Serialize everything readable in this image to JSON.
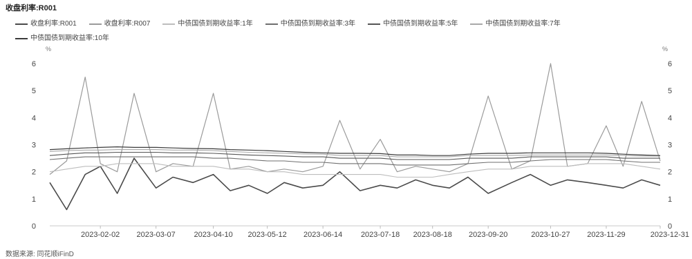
{
  "title": "收盘利率:R001",
  "unit_left": "%",
  "unit_right": "%",
  "source": "数据来源: 同花顺iFinD",
  "chart_data": {
    "type": "line",
    "title": "收盘利率:R001",
    "ylim": [
      0,
      6
    ],
    "yticks": [
      0,
      1,
      2,
      3,
      4,
      5,
      6
    ],
    "ylabel_left": "%",
    "ylabel_right": "%",
    "grid": false,
    "legend_position": "top-left",
    "x_tick_labels": [
      "2023-02-02",
      "2023-03-07",
      "2023-04-10",
      "2023-05-12",
      "2023-06-14",
      "2023-07-18",
      "2023-08-18",
      "2023-09-20",
      "2023-10-27",
      "2023-11-29",
      "2023-12-31"
    ],
    "x": [
      "2023-01-03",
      "2023-01-13",
      "2023-01-24",
      "2023-02-02",
      "2023-02-12",
      "2023-02-22",
      "2023-03-07",
      "2023-03-17",
      "2023-03-29",
      "2023-04-10",
      "2023-04-20",
      "2023-05-01",
      "2023-05-12",
      "2023-05-22",
      "2023-06-02",
      "2023-06-14",
      "2023-06-24",
      "2023-07-06",
      "2023-07-18",
      "2023-07-28",
      "2023-08-08",
      "2023-08-18",
      "2023-08-28",
      "2023-09-08",
      "2023-09-20",
      "2023-10-04",
      "2023-10-15",
      "2023-10-27",
      "2023-11-06",
      "2023-11-18",
      "2023-11-29",
      "2023-12-09",
      "2023-12-20",
      "2023-12-31"
    ],
    "series": [
      {
        "name": "收盘利率:R001",
        "color": "#4a4a4a",
        "width": 1.6,
        "values": [
          1.6,
          0.6,
          1.9,
          2.2,
          1.2,
          2.5,
          1.4,
          1.8,
          1.6,
          1.9,
          1.3,
          1.5,
          1.2,
          1.6,
          1.4,
          1.5,
          2.0,
          1.3,
          1.5,
          1.4,
          1.7,
          1.5,
          1.4,
          1.8,
          1.2,
          1.6,
          1.9,
          1.5,
          1.7,
          1.6,
          1.5,
          1.4,
          1.7,
          1.5
        ]
      },
      {
        "name": "收盘利率:R007",
        "color": "#9a9a9a",
        "width": 1.2,
        "values": [
          1.9,
          2.4,
          5.5,
          2.3,
          2.0,
          4.9,
          2.0,
          2.3,
          2.2,
          4.9,
          2.1,
          2.2,
          2.0,
          2.1,
          2.0,
          2.2,
          3.9,
          2.1,
          3.2,
          2.0,
          2.2,
          2.1,
          2.0,
          2.3,
          4.8,
          2.1,
          2.4,
          6.0,
          2.2,
          2.3,
          3.7,
          2.2,
          4.6,
          2.4
        ]
      },
      {
        "name": "中债国债到期收益率:1年",
        "color": "#bdbdbd",
        "width": 1.1,
        "values": [
          2.0,
          2.1,
          2.2,
          2.2,
          2.3,
          2.3,
          2.3,
          2.2,
          2.2,
          2.2,
          2.1,
          2.1,
          2.0,
          2.0,
          1.9,
          1.9,
          1.9,
          1.9,
          1.9,
          1.8,
          1.8,
          1.8,
          1.9,
          2.0,
          2.1,
          2.1,
          2.2,
          2.2,
          2.2,
          2.3,
          2.3,
          2.3,
          2.2,
          2.1
        ]
      },
      {
        "name": "中债国债到期收益率:3年",
        "color": "#6e6e6e",
        "width": 1.1,
        "values": [
          2.45,
          2.5,
          2.55,
          2.55,
          2.55,
          2.55,
          2.55,
          2.55,
          2.55,
          2.5,
          2.5,
          2.45,
          2.4,
          2.4,
          2.35,
          2.35,
          2.3,
          2.3,
          2.3,
          2.25,
          2.25,
          2.25,
          2.25,
          2.3,
          2.35,
          2.35,
          2.4,
          2.45,
          2.45,
          2.45,
          2.45,
          2.4,
          2.35,
          2.35
        ]
      },
      {
        "name": "中债国债到期收益率:5年",
        "color": "#555555",
        "width": 1.1,
        "values": [
          2.6,
          2.65,
          2.7,
          2.7,
          2.72,
          2.72,
          2.72,
          2.7,
          2.7,
          2.68,
          2.65,
          2.62,
          2.6,
          2.58,
          2.55,
          2.55,
          2.5,
          2.5,
          2.5,
          2.45,
          2.45,
          2.45,
          2.45,
          2.5,
          2.5,
          2.5,
          2.55,
          2.55,
          2.55,
          2.55,
          2.55,
          2.5,
          2.5,
          2.5
        ]
      },
      {
        "name": "中债国债到期收益率:7年",
        "color": "#a8a8a8",
        "width": 1.1,
        "values": [
          2.75,
          2.78,
          2.8,
          2.8,
          2.82,
          2.82,
          2.82,
          2.8,
          2.8,
          2.78,
          2.75,
          2.72,
          2.7,
          2.68,
          2.66,
          2.65,
          2.6,
          2.6,
          2.6,
          2.55,
          2.55,
          2.55,
          2.55,
          2.6,
          2.6,
          2.6,
          2.62,
          2.62,
          2.62,
          2.62,
          2.62,
          2.6,
          2.58,
          2.58
        ]
      },
      {
        "name": "中债国债到期收益率:10年",
        "color": "#3a3a3a",
        "width": 1.2,
        "values": [
          2.82,
          2.85,
          2.88,
          2.9,
          2.92,
          2.9,
          2.9,
          2.88,
          2.86,
          2.85,
          2.82,
          2.8,
          2.78,
          2.75,
          2.72,
          2.7,
          2.68,
          2.68,
          2.67,
          2.62,
          2.62,
          2.6,
          2.6,
          2.65,
          2.68,
          2.68,
          2.7,
          2.7,
          2.7,
          2.7,
          2.68,
          2.65,
          2.62,
          2.6
        ]
      }
    ]
  }
}
